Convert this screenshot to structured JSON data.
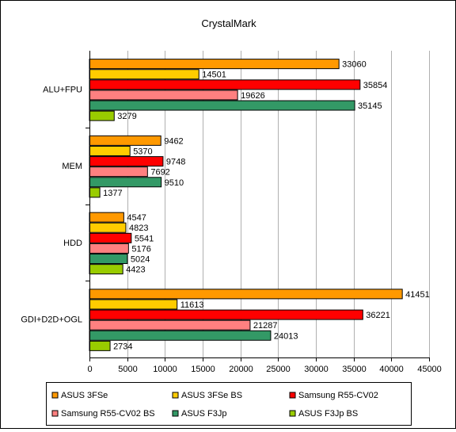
{
  "chart_data": {
    "type": "bar",
    "orientation": "horizontal",
    "title": "CrystalMark",
    "xlabel": "",
    "ylabel": "",
    "xlim": [
      0,
      45000
    ],
    "x_ticks": [
      0,
      5000,
      10000,
      15000,
      20000,
      25000,
      30000,
      35000,
      40000,
      45000
    ],
    "grid": true,
    "legend_position": "bottom",
    "categories": [
      "ALU+FPU",
      "MEM",
      "HDD",
      "GDI+D2D+OGL"
    ],
    "series": [
      {
        "name": "ASUS 3FSe",
        "color": "#ff9900",
        "values": [
          33060,
          9462,
          4547,
          41451
        ]
      },
      {
        "name": "ASUS 3FSe BS",
        "color": "#ffcc00",
        "values": [
          14501,
          5370,
          4823,
          11613
        ]
      },
      {
        "name": "Samsung R55-CV02",
        "color": "#ff0000",
        "values": [
          35854,
          9748,
          5541,
          36221
        ]
      },
      {
        "name": "Samsung R55-CV02 BS",
        "color": "#ff8080",
        "values": [
          19626,
          7692,
          5176,
          21287
        ]
      },
      {
        "name": "ASUS F3Jp",
        "color": "#339966",
        "values": [
          35145,
          9510,
          5024,
          24013
        ]
      },
      {
        "name": "ASUS F3Jp BS",
        "color": "#99cc00",
        "values": [
          3279,
          1377,
          4423,
          2734
        ]
      }
    ]
  }
}
